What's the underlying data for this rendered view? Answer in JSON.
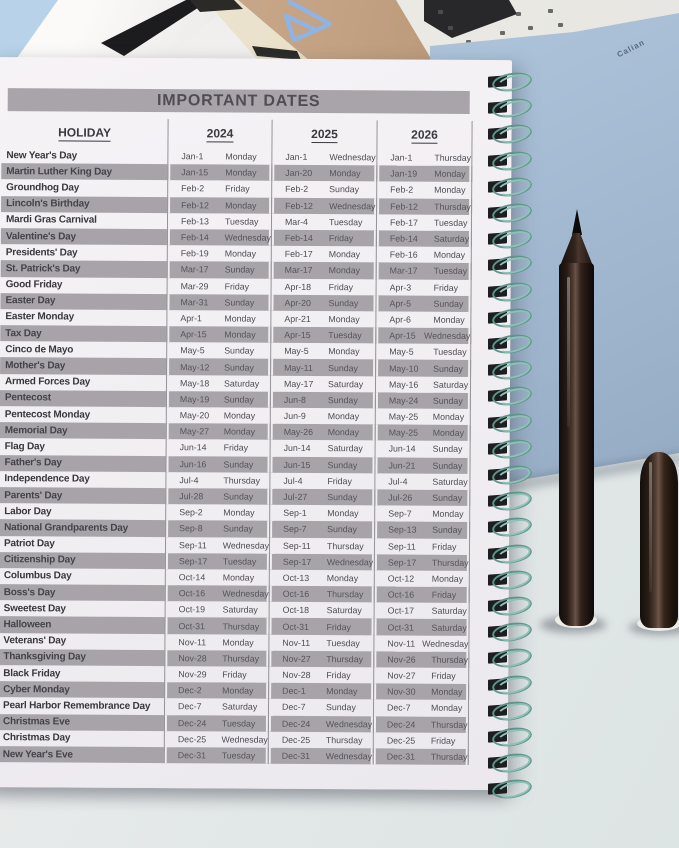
{
  "page": {
    "title": "IMPORTANT DATES",
    "columns": {
      "holiday": "HOLIDAY",
      "years": [
        "2024",
        "2025",
        "2026"
      ]
    },
    "rows": [
      [
        "New Year's Day",
        "Jan-1",
        "Monday",
        "Jan-1",
        "Wednesday",
        "Jan-1",
        "Thursday"
      ],
      [
        "Martin Luther King Day",
        "Jan-15",
        "Monday",
        "Jan-20",
        "Monday",
        "Jan-19",
        "Monday"
      ],
      [
        "Groundhog Day",
        "Feb-2",
        "Friday",
        "Feb-2",
        "Sunday",
        "Feb-2",
        "Monday"
      ],
      [
        "Lincoln's Birthday",
        "Feb-12",
        "Monday",
        "Feb-12",
        "Wednesday",
        "Feb-12",
        "Thursday"
      ],
      [
        "Mardi Gras Carnival",
        "Feb-13",
        "Tuesday",
        "Mar-4",
        "Tuesday",
        "Feb-17",
        "Tuesday"
      ],
      [
        "Valentine's Day",
        "Feb-14",
        "Wednesday",
        "Feb-14",
        "Friday",
        "Feb-14",
        "Saturday"
      ],
      [
        "Presidents' Day",
        "Feb-19",
        "Monday",
        "Feb-17",
        "Monday",
        "Feb-16",
        "Monday"
      ],
      [
        "St. Patrick's Day",
        "Mar-17",
        "Sunday",
        "Mar-17",
        "Monday",
        "Mar-17",
        "Tuesday"
      ],
      [
        "Good Friday",
        "Mar-29",
        "Friday",
        "Apr-18",
        "Friday",
        "Apr-3",
        "Friday"
      ],
      [
        "Easter Day",
        "Mar-31",
        "Sunday",
        "Apr-20",
        "Sunday",
        "Apr-5",
        "Sunday"
      ],
      [
        "Easter Monday",
        "Apr-1",
        "Monday",
        "Apr-21",
        "Monday",
        "Apr-6",
        "Monday"
      ],
      [
        "Tax Day",
        "Apr-15",
        "Monday",
        "Apr-15",
        "Tuesday",
        "Apr-15",
        "Wednesday"
      ],
      [
        "Cinco de Mayo",
        "May-5",
        "Sunday",
        "May-5",
        "Monday",
        "May-5",
        "Tuesday"
      ],
      [
        "Mother's Day",
        "May-12",
        "Sunday",
        "May-11",
        "Sunday",
        "May-10",
        "Sunday"
      ],
      [
        "Armed Forces Day",
        "May-18",
        "Saturday",
        "May-17",
        "Saturday",
        "May-16",
        "Saturday"
      ],
      [
        "Pentecost",
        "May-19",
        "Sunday",
        "Jun-8",
        "Sunday",
        "May-24",
        "Sunday"
      ],
      [
        "Pentecost Monday",
        "May-20",
        "Monday",
        "Jun-9",
        "Monday",
        "May-25",
        "Monday"
      ],
      [
        "Memorial Day",
        "May-27",
        "Monday",
        "May-26",
        "Monday",
        "May-25",
        "Monday"
      ],
      [
        "Flag Day",
        "Jun-14",
        "Friday",
        "Jun-14",
        "Saturday",
        "Jun-14",
        "Sunday"
      ],
      [
        "Father's Day",
        "Jun-16",
        "Sunday",
        "Jun-15",
        "Sunday",
        "Jun-21",
        "Sunday"
      ],
      [
        "Independence Day",
        "Jul-4",
        "Thursday",
        "Jul-4",
        "Friday",
        "Jul-4",
        "Saturday"
      ],
      [
        "Parents' Day",
        "Jul-28",
        "Sunday",
        "Jul-27",
        "Sunday",
        "Jul-26",
        "Sunday"
      ],
      [
        "Labor Day",
        "Sep-2",
        "Monday",
        "Sep-1",
        "Monday",
        "Sep-7",
        "Monday"
      ],
      [
        "National Grandparents Day",
        "Sep-8",
        "Sunday",
        "Sep-7",
        "Sunday",
        "Sep-13",
        "Sunday"
      ],
      [
        "Patriot Day",
        "Sep-11",
        "Wednesday",
        "Sep-11",
        "Thursday",
        "Sep-11",
        "Friday"
      ],
      [
        "Citizenship Day",
        "Sep-17",
        "Tuesday",
        "Sep-17",
        "Wednesday",
        "Sep-17",
        "Thursday"
      ],
      [
        "Columbus Day",
        "Oct-14",
        "Monday",
        "Oct-13",
        "Monday",
        "Oct-12",
        "Monday"
      ],
      [
        "Boss's Day",
        "Oct-16",
        "Wednesday",
        "Oct-16",
        "Thursday",
        "Oct-16",
        "Friday"
      ],
      [
        "Sweetest Day",
        "Oct-19",
        "Saturday",
        "Oct-18",
        "Saturday",
        "Oct-17",
        "Saturday"
      ],
      [
        "Halloween",
        "Oct-31",
        "Thursday",
        "Oct-31",
        "Friday",
        "Oct-31",
        "Saturday"
      ],
      [
        "Veterans' Day",
        "Nov-11",
        "Monday",
        "Nov-11",
        "Tuesday",
        "Nov-11",
        "Wednesday"
      ],
      [
        "Thanksgiving Day",
        "Nov-28",
        "Thursday",
        "Nov-27",
        "Thursday",
        "Nov-26",
        "Thursday"
      ],
      [
        "Black Friday",
        "Nov-29",
        "Friday",
        "Nov-28",
        "Friday",
        "Nov-27",
        "Friday"
      ],
      [
        "Cyber Monday",
        "Dec-2",
        "Monday",
        "Dec-1",
        "Monday",
        "Nov-30",
        "Monday"
      ],
      [
        "Pearl Harbor Remembrance Day",
        "Dec-7",
        "Saturday",
        "Dec-7",
        "Sunday",
        "Dec-7",
        "Monday"
      ],
      [
        "Christmas Eve",
        "Dec-24",
        "Tuesday",
        "Dec-24",
        "Wednesday",
        "Dec-24",
        "Thursday"
      ],
      [
        "Christmas Day",
        "Dec-25",
        "Wednesday",
        "Dec-25",
        "Thursday",
        "Dec-25",
        "Friday"
      ],
      [
        "New Year's Eve",
        "Dec-31",
        "Tuesday",
        "Dec-31",
        "Wednesday",
        "Dec-31",
        "Thursday"
      ]
    ]
  },
  "props": {
    "notebook_brand": "Calian",
    "spiral_coil_count": 28
  },
  "colors": {
    "title_bar": "#a8a4a9",
    "row_stripe": "#a7a3a8",
    "page": "#f1eef2",
    "spiral_wire": "#5e948c",
    "notebook_blue": "#a9c0d7",
    "pen_brown": "#2a1d16",
    "desk_gray": "#e3e8e8"
  }
}
